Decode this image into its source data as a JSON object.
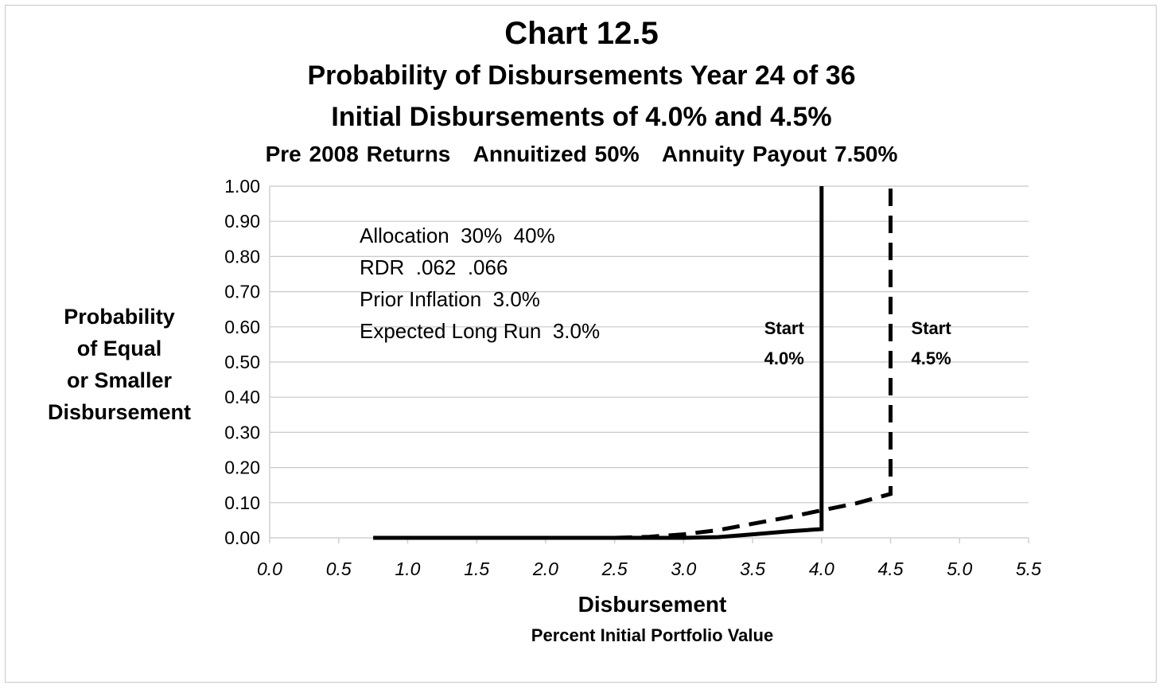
{
  "chart_data": {
    "type": "line",
    "title": "Chart 12.5",
    "subtitle": "Probability of Disbursements Year 24 of 36",
    "subtitle2": "Initial Disbursements of 4.0% and 4.5%",
    "subtitle3": "Pre 2008 Returns   Annuitized 50%   Annuity Payout 7.50%",
    "ylabel_lines": [
      "Probability",
      "of Equal",
      "or Smaller",
      "Disbursement"
    ],
    "xlabel": "Disbursement",
    "xlabel_sub": "Percent Initial Portfolio Value",
    "xlim": [
      0.0,
      5.5
    ],
    "ylim": [
      0.0,
      1.0
    ],
    "x_ticks": [
      "0.0",
      "0.5",
      "1.0",
      "1.5",
      "2.0",
      "2.5",
      "3.0",
      "3.5",
      "4.0",
      "4.5",
      "5.0",
      "5.5"
    ],
    "y_ticks": [
      "0.00",
      "0.10",
      "0.20",
      "0.30",
      "0.40",
      "0.50",
      "0.60",
      "0.70",
      "0.80",
      "0.90",
      "1.00"
    ],
    "grid": true,
    "series": [
      {
        "style": "solid",
        "x": [
          0.75,
          1.0,
          1.5,
          2.0,
          2.5,
          3.0,
          3.25,
          3.5,
          3.75,
          4.0,
          4.0
        ],
        "y": [
          0.0,
          0.0,
          0.0,
          0.0,
          0.0,
          0.0,
          0.002,
          0.01,
          0.018,
          0.025,
          1.0
        ]
      },
      {
        "style": "dashed",
        "x": [
          2.5,
          2.75,
          3.0,
          3.25,
          3.5,
          3.75,
          4.0,
          4.25,
          4.5,
          4.5
        ],
        "y": [
          0.0,
          0.003,
          0.01,
          0.022,
          0.04,
          0.058,
          0.078,
          0.098,
          0.125,
          1.0
        ]
      }
    ],
    "annotations": {
      "box_lines": [
        "Allocation  30%  40%",
        "RDR  .062  .066",
        "Prior Inflation  3.0%",
        "Expected Long Run  3.0%"
      ],
      "markers": [
        {
          "x": 4.0,
          "lines": [
            "Start",
            "4.0%"
          ],
          "side": "left"
        },
        {
          "x": 4.5,
          "lines": [
            "Start",
            "4.5%"
          ],
          "side": "right"
        }
      ]
    },
    "colors": {
      "line": "#000000",
      "grid": "#c8c8c8",
      "axis": "#d0d0d0"
    }
  }
}
